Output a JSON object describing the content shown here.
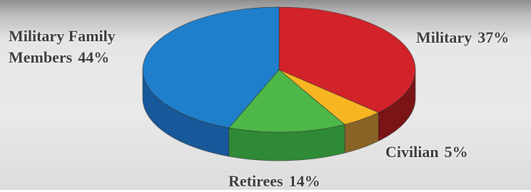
{
  "chart_data": {
    "type": "pie",
    "categories": [
      "Military",
      "Civilian",
      "Retirees",
      "Military Family Members"
    ],
    "values": [
      37,
      5,
      14,
      44
    ],
    "value_labels": [
      "37%",
      "5%",
      "14%",
      "44%"
    ],
    "colors": [
      "#d2232a",
      "#f7b522",
      "#4db748",
      "#1f7fcb"
    ],
    "side_colors": [
      "#7a1416",
      "#8a6426",
      "#2f8a35",
      "#17599a"
    ]
  }
}
